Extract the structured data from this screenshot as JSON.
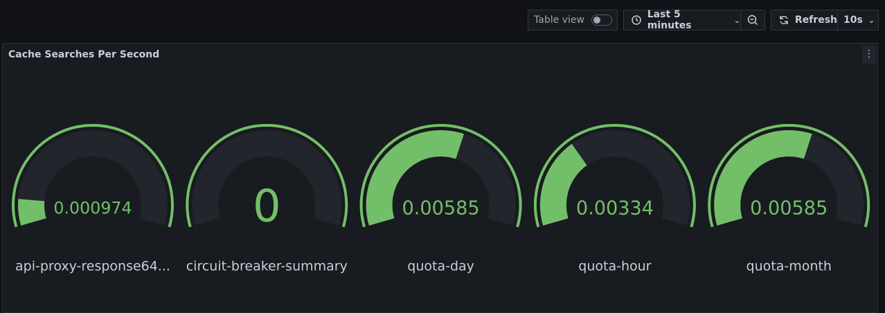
{
  "toolbar": {
    "table_view": "Table view",
    "time_range": "Last 5 minutes",
    "refresh": "Refresh",
    "interval": "10s"
  },
  "chart_data": {
    "type": "gauge",
    "title": "Cache Searches Per Second",
    "categories": [
      "api-proxy-response64...",
      "circuit-breaker-summary",
      "quota-day",
      "quota-hour",
      "quota-month"
    ],
    "values": [
      0.000974,
      0,
      0.00585,
      0.00334,
      0.00585
    ],
    "color": "#73bf69",
    "ylim": [
      0,
      0.01
    ]
  }
}
